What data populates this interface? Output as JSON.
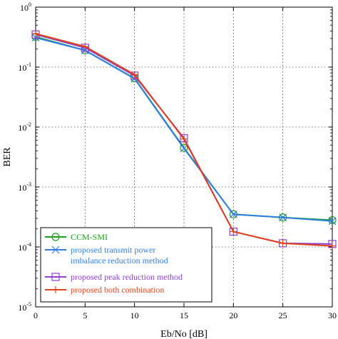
{
  "chart_data": {
    "type": "line",
    "title": "",
    "xlabel": "Eb/No [dB]",
    "ylabel": "BER",
    "xlim": [
      0,
      30
    ],
    "ylim": [
      1e-05,
      1
    ],
    "yscale": "log",
    "grid": true,
    "x": [
      0,
      5,
      10,
      15,
      20,
      25,
      30
    ],
    "x_ticks": [
      "0",
      "5",
      "10",
      "15",
      "20",
      "25",
      "30"
    ],
    "y_ticks": [
      {
        "value": 1,
        "base": "10",
        "exp": "0"
      },
      {
        "value": 0.1,
        "base": "10",
        "exp": "-1"
      },
      {
        "value": 0.01,
        "base": "10",
        "exp": "-2"
      },
      {
        "value": 0.001,
        "base": "10",
        "exp": "-3"
      },
      {
        "value": 0.0001,
        "base": "10",
        "exp": "-4"
      },
      {
        "value": 1e-05,
        "base": "10",
        "exp": "-5"
      }
    ],
    "legend_position": "bottom-left",
    "series": [
      {
        "name": "CCM-SMI",
        "color": "#1aa01a",
        "marker": "circle",
        "values": [
          0.32,
          0.19,
          0.065,
          0.0045,
          0.00035,
          0.00031,
          0.00028
        ]
      },
      {
        "name": "proposed transmit power imbalance reduction method",
        "legend_lines": [
          "proposed transmit power",
          "imbalance reduction method"
        ],
        "color": "#2f7fe0",
        "marker": "x",
        "values": [
          0.31,
          0.19,
          0.064,
          0.0044,
          0.00035,
          0.00031,
          0.00027
        ]
      },
      {
        "name": "proposed peak reduction method",
        "color": "#8c3fd0",
        "marker": "square",
        "values": [
          0.35,
          0.21,
          0.072,
          0.0065,
          0.00018,
          0.000115,
          0.000112
        ]
      },
      {
        "name": "proposed both combination",
        "color": "#e0421c",
        "marker": "plus",
        "values": [
          0.36,
          0.22,
          0.075,
          0.0063,
          0.00018,
          0.000115,
          0.000104
        ]
      }
    ]
  }
}
